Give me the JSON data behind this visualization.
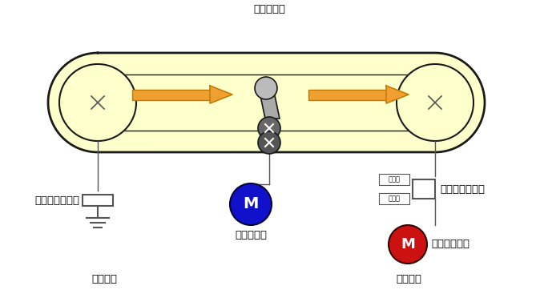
{
  "bg_color": "#ffffff",
  "belt_color": "#ffffcc",
  "belt_outline": "#1a1a1a",
  "roll_body_color": "#aaaaaa",
  "roll_dark_color": "#555555",
  "roll_cap_color": "#777777",
  "arrow_color": "#f0a030",
  "arrow_edge": "#c07800",
  "motor_blue": "#1111cc",
  "motor_red": "#cc1111",
  "motor_text": "#ffffff",
  "line_color": "#555555",
  "label_送りロール": "送りロール",
  "label_送りモータ": "送りモータ",
  "label_パウダブレーキ": "パウダブレーキ",
  "label_パウダクラッチ": "パウダクラッチ",
  "label_巻出し部": "巻出し部",
  "label_巻取り部": "巻取り部",
  "label_巻取りモータ": "巻取りモータ",
  "label_出力側": "出力側",
  "label_入力側": "入力側",
  "label_M": "M",
  "figw": 6.69,
  "figh": 3.67,
  "dpi": 100
}
